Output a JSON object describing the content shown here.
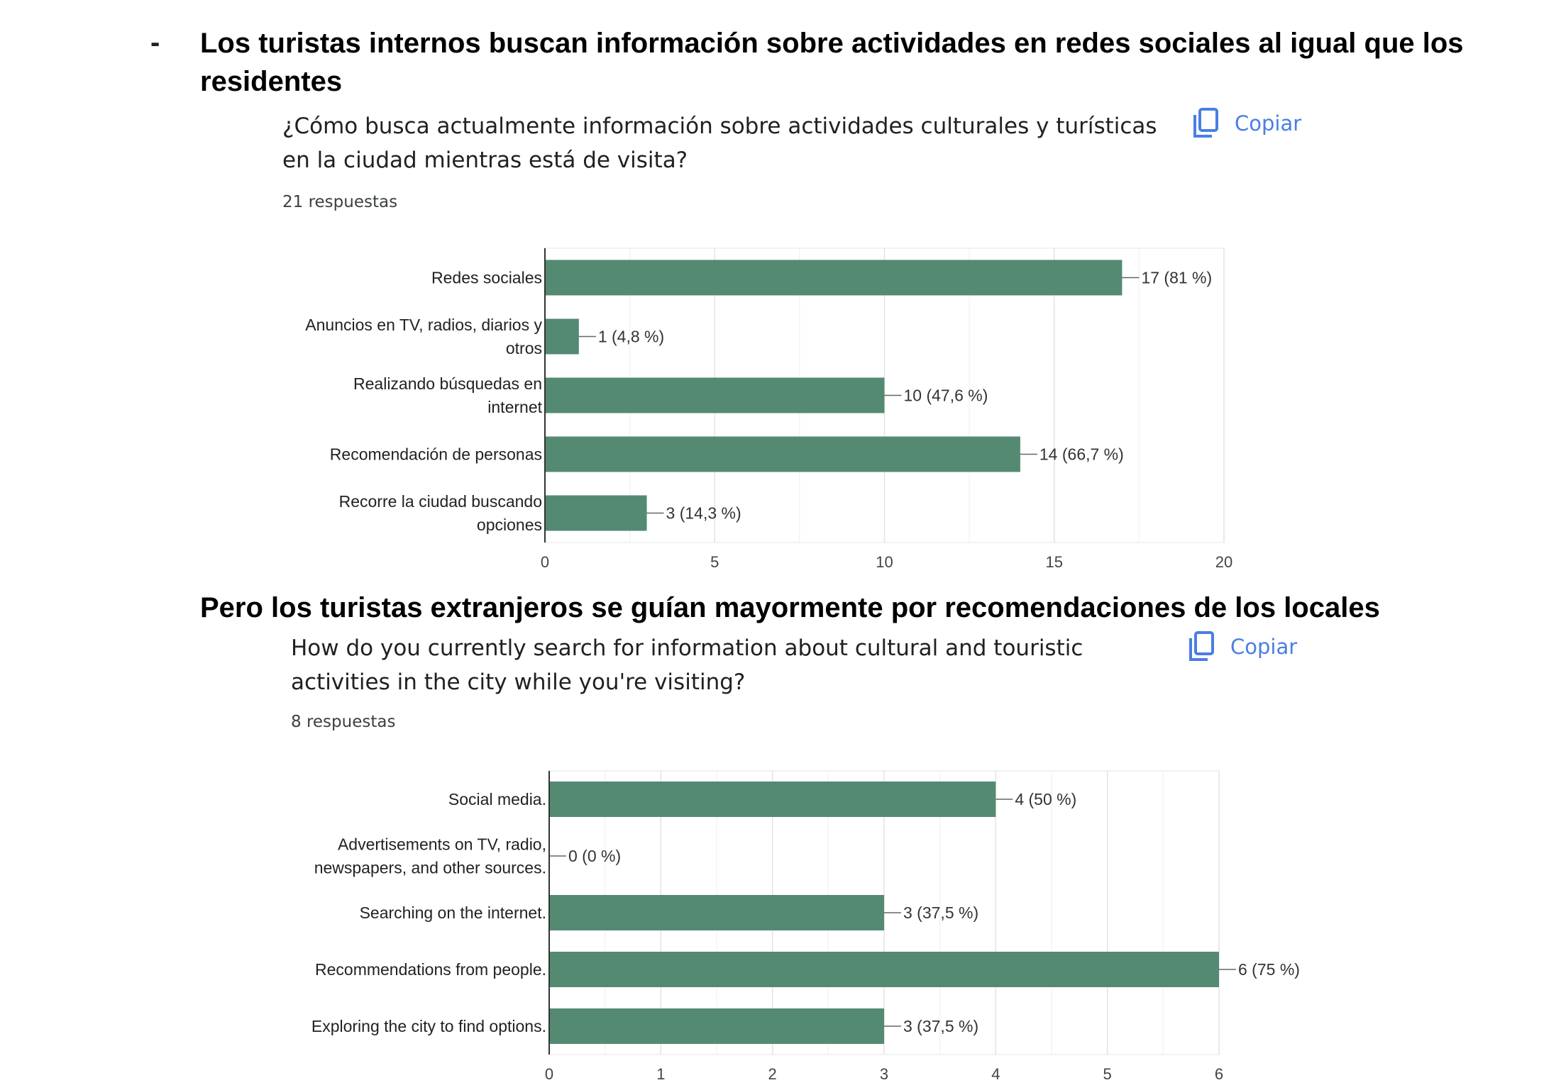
{
  "headline1": {
    "bullet": "-",
    "text": "Los turistas internos buscan información sobre actividades en redes sociales al igual que los residentes"
  },
  "headline2": {
    "text": "Pero los turistas extranjeros se guían mayormente por recomendaciones de los locales"
  },
  "colors": {
    "bar": "#548a72",
    "copy": "#4a7ee2"
  },
  "chart_data": [
    {
      "type": "bar",
      "orientation": "horizontal",
      "title": "¿Cómo busca actualmente información sobre actividades culturales y turísticas en la ciudad mientras está de visita?",
      "subtitle": "21 respuestas",
      "copy_label": "Copiar",
      "copy_icon": "copy-icon",
      "categories": [
        [
          "Redes sociales"
        ],
        [
          "Anuncios en TV, radios, diarios y",
          "otros"
        ],
        [
          "Realizando búsquedas en",
          "internet"
        ],
        [
          "Recomendación de personas"
        ],
        [
          "Recorre la ciudad buscando",
          "opciones"
        ]
      ],
      "values": [
        17,
        1,
        10,
        14,
        3
      ],
      "data_labels": [
        "17 (81 %)",
        "1 (4,8 %)",
        "10 (47,6 %)",
        "14 (66,7 %)",
        "3 (14,3 %)"
      ],
      "xlim": [
        0,
        20
      ],
      "xticks": [
        "0",
        "5",
        "10",
        "15",
        "20"
      ],
      "grid": true,
      "legend": "none"
    },
    {
      "type": "bar",
      "orientation": "horizontal",
      "title": "How do you currently search for information about cultural and touristic activities in the city while you're visiting?",
      "subtitle": "8 respuestas",
      "copy_label": "Copiar",
      "copy_icon": "copy-icon",
      "categories": [
        [
          "Social media."
        ],
        [
          "Advertisements on TV, radio,",
          "newspapers, and other sources."
        ],
        [
          "Searching on the internet."
        ],
        [
          "Recommendations from people."
        ],
        [
          "Exploring the city to find options."
        ]
      ],
      "values": [
        4,
        0,
        3,
        6,
        3
      ],
      "data_labels": [
        "4 (50 %)",
        "0 (0 %)",
        "3 (37,5 %)",
        "6 (75 %)",
        "3 (37,5 %)"
      ],
      "xlim": [
        0,
        6
      ],
      "xticks": [
        "0",
        "1",
        "2",
        "3",
        "4",
        "5",
        "6"
      ],
      "grid": true,
      "legend": "none"
    }
  ]
}
